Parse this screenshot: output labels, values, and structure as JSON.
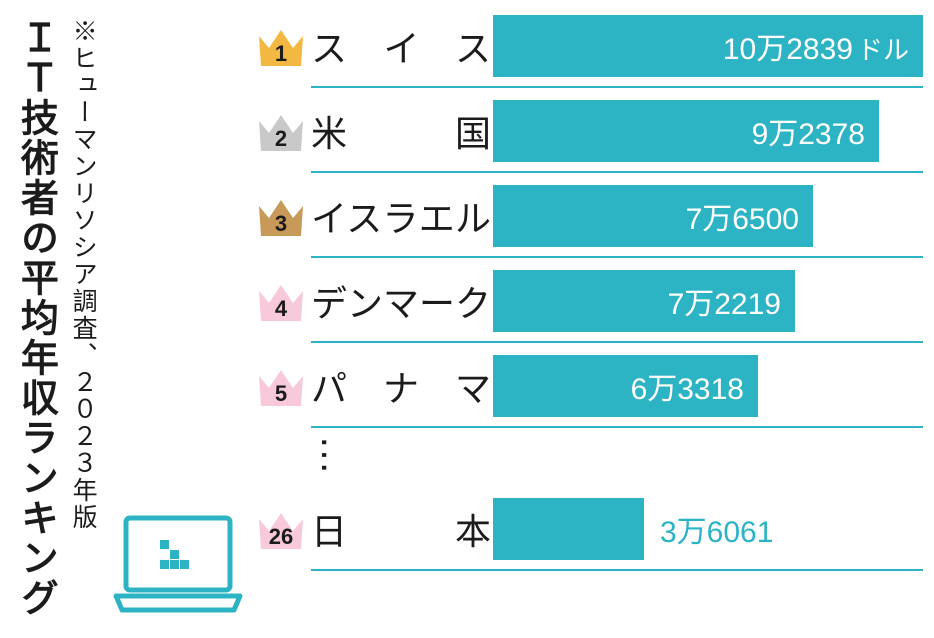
{
  "title": {
    "main": "ＩＴ技術者の平均年収ランキング",
    "source": "※ヒューマンリソシア調査、２０２３年版"
  },
  "chart": {
    "type": "bar",
    "bar_color": "#2db4c4",
    "underline_color": "#2db4c4",
    "text_color": "#1b1b1b",
    "max_value": 102839,
    "max_bar_width": 430,
    "unit_suffix": "ドル",
    "rows": [
      {
        "rank": 1,
        "country": "スイス",
        "value": 102839,
        "label": "10万2839",
        "crown_fill": "#f3b841",
        "crown_text": "#1b1b1b",
        "show_unit": true,
        "value_inside": true
      },
      {
        "rank": 2,
        "country": "米　国",
        "value": 92378,
        "label": "9万2378",
        "crown_fill": "#c9c9c9",
        "crown_text": "#1b1b1b",
        "show_unit": false,
        "value_inside": true
      },
      {
        "rank": 3,
        "country": "イスラエル",
        "value": 76500,
        "label": "7万6500",
        "crown_fill": "#c79a5a",
        "crown_text": "#1b1b1b",
        "show_unit": false,
        "value_inside": true
      },
      {
        "rank": 4,
        "country": "デンマーク",
        "value": 72219,
        "label": "7万2219",
        "crown_fill": "#f8c9db",
        "crown_text": "#1b1b1b",
        "show_unit": false,
        "value_inside": true
      },
      {
        "rank": 5,
        "country": "パナマ",
        "value": 63318,
        "label": "6万3318",
        "crown_fill": "#f8c9db",
        "crown_text": "#1b1b1b",
        "show_unit": false,
        "value_inside": true
      },
      {
        "rank": 26,
        "country": "日　本",
        "value": 36061,
        "label": "3万6061",
        "crown_fill": "#f8c9db",
        "crown_text": "#1b1b1b",
        "show_unit": false,
        "value_inside": false,
        "gap_before": true
      }
    ],
    "ellipsis": "…"
  },
  "laptop": {
    "stroke": "#2db4c4",
    "dot_color": "#2db4c4"
  }
}
